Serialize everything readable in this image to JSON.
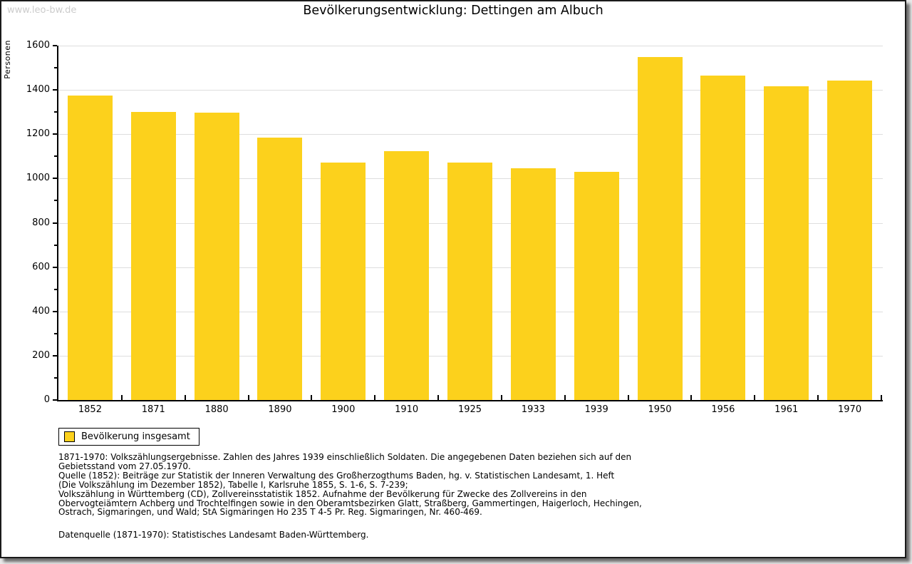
{
  "watermark": {
    "text": "www.leo-bw.de"
  },
  "chart_data": {
    "type": "bar",
    "title": "Bevölkerungsentwicklung: Dettingen am Albuch",
    "ylabel": "Personen",
    "xlabel": "",
    "categories": [
      "1852",
      "1871",
      "1880",
      "1890",
      "1900",
      "1910",
      "1925",
      "1933",
      "1939",
      "1950",
      "1956",
      "1961",
      "1970"
    ],
    "values": [
      1375,
      1302,
      1297,
      1185,
      1073,
      1123,
      1071,
      1045,
      1030,
      1550,
      1464,
      1418,
      1442
    ],
    "ylim": [
      0,
      1600
    ],
    "ytick_step": 200,
    "yminor_step": 100,
    "grid": true,
    "bar_color": "#FCD11C",
    "grid_color": "#dedede",
    "legend": {
      "position": "bottom-left",
      "label": "Bevölkerung insgesamt"
    }
  },
  "notes": {
    "block1_lines": [
      "1871-1970: Volkszählungsergebnisse. Zahlen des Jahres 1939 einschließlich Soldaten. Die angegebenen Daten beziehen sich auf den",
      "Gebietsstand vom 27.05.1970.",
      "Quelle (1852): Beiträge zur Statistik der Inneren Verwaltung des Großherzogthums Baden, hg. v. Statistischen Landesamt, 1. Heft",
      "(Die Volkszählung im Dezember 1852), Tabelle I, Karlsruhe 1855, S. 1-6, S. 7-239;",
      "Volkszählung in Württemberg (CD), Zollvereinsstatistik 1852. Aufnahme der Bevölkerung für Zwecke des Zollvereins in den",
      "Obervogteiämtern Achberg und Trochtelfingen sowie in den Oberamtsbezirken Glatt, Straßberg, Gammertingen, Haigerloch, Hechingen,",
      "Ostrach, Sigmaringen, und Wald; StA Sigmaringen Ho 235 T 4-5 Pr. Reg. Sigmaringen, Nr. 460-469."
    ],
    "block2": "Datenquelle (1871-1970): Statistisches Landesamt Baden-Württemberg."
  }
}
